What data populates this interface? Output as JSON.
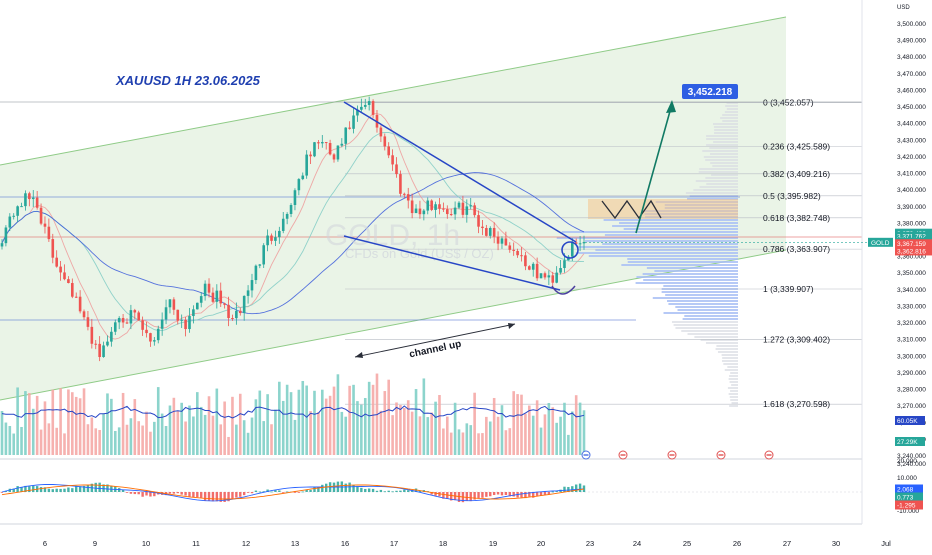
{
  "chart_title": "XAUUSD 1H 23.06.2025",
  "watermark": {
    "symbol": "GOLD, 1h",
    "description": "CFDs on Gold (US$ / OZ)"
  },
  "currency": "USD",
  "target_label": "3,452.218",
  "channel_label": "channel up",
  "fib_levels": [
    {
      "label": "0 (3,452.057)",
      "price": 3452.057
    },
    {
      "label": "0.236 (3,425.589)",
      "price": 3425.589
    },
    {
      "label": "0.382 (3,409.216)",
      "price": 3409.216
    },
    {
      "label": "0.5 (3,395.982)",
      "price": 3395.982
    },
    {
      "label": "0.618 (3,382.748)",
      "price": 3382.748
    },
    {
      "label": "0.786 (3,363.907)",
      "price": 3363.907
    },
    {
      "label": "1 (3,339.907)",
      "price": 3339.907
    },
    {
      "label": "1.272 (3,309.402)",
      "price": 3309.402
    },
    {
      "label": "1.618 (3,270.598)",
      "price": 3270.598
    }
  ],
  "price_axis": {
    "min": 3240,
    "max": 3500,
    "step": 10,
    "ticks": [
      "3,500.000",
      "3,490.000",
      "3,480.000",
      "3,470.000",
      "3,460.000",
      "3,450.000",
      "3,440.000",
      "3,430.000",
      "3,420.000",
      "3,410.000",
      "3,400.000",
      "3,390.000",
      "3,380.000",
      "3,370.000",
      "3,360.000",
      "3,350.000",
      "3,340.000",
      "3,330.000",
      "3,320.000",
      "3,310.000",
      "3,300.000",
      "3,290.000",
      "3,280.000",
      "3,270.000",
      "3,260.000",
      "3,250.000",
      "3,240.000"
    ]
  },
  "price_badges": [
    {
      "text": "3,373.492",
      "price": 3373.492,
      "color": "#26a69a"
    },
    {
      "text": "3,371.762",
      "price": 3371.762,
      "color": "#26a69a"
    },
    {
      "text": "3,368.005",
      "price": 3368.005,
      "color": "#26a69a"
    },
    {
      "text": "3,367.159",
      "price": 3367.159,
      "color": "#ef5350"
    },
    {
      "text": "3,362.816",
      "price": 3362.816,
      "color": "#ef5350"
    }
  ],
  "gold_tag": "GOLD",
  "volume_labels": {
    "top": "60.05K",
    "bottom": "27.29K"
  },
  "macd_axis": [
    "20.000",
    "10.000",
    "-10.000"
  ],
  "macd_badges": [
    "2.068",
    "0.773",
    "-1.295"
  ],
  "time_axis": [
    "6",
    "9",
    "10",
    "11",
    "12",
    "13",
    "16",
    "17",
    "18",
    "19",
    "20",
    "23",
    "24",
    "25",
    "26",
    "27",
    "30",
    "Jul"
  ],
  "chart_data": {
    "type": "candlestick",
    "title": "XAUUSD 1H 23.06.2025",
    "symbol": "GOLD",
    "timeframe": "1h",
    "ylim": [
      3240,
      3500
    ],
    "x_ticks": [
      "6",
      "9",
      "10",
      "11",
      "12",
      "13",
      "16",
      "17",
      "18",
      "19",
      "20",
      "23",
      "24",
      "25",
      "26",
      "27",
      "30",
      "Jul"
    ],
    "close_path": [
      {
        "d": "6",
        "v": 3372
      },
      {
        "d": "6",
        "v": 3392
      },
      {
        "d": "6",
        "v": 3395
      },
      {
        "d": "6",
        "v": 3360
      },
      {
        "d": "6",
        "v": 3345
      },
      {
        "d": "9",
        "v": 3318
      },
      {
        "d": "9",
        "v": 3300
      },
      {
        "d": "9",
        "v": 3325
      },
      {
        "d": "10",
        "v": 3322
      },
      {
        "d": "10",
        "v": 3306
      },
      {
        "d": "10",
        "v": 3334
      },
      {
        "d": "11",
        "v": 3318
      },
      {
        "d": "11",
        "v": 3340
      },
      {
        "d": "11",
        "v": 3334
      },
      {
        "d": "11",
        "v": 3320
      },
      {
        "d": "12",
        "v": 3345
      },
      {
        "d": "12",
        "v": 3370
      },
      {
        "d": "12",
        "v": 3382
      },
      {
        "d": "13",
        "v": 3410
      },
      {
        "d": "13",
        "v": 3430
      },
      {
        "d": "13",
        "v": 3418
      },
      {
        "d": "13",
        "v": 3440
      },
      {
        "d": "16",
        "v": 3452
      },
      {
        "d": "16",
        "v": 3428
      },
      {
        "d": "16",
        "v": 3400
      },
      {
        "d": "17",
        "v": 3385
      },
      {
        "d": "17",
        "v": 3392
      },
      {
        "d": "18",
        "v": 3386
      },
      {
        "d": "18",
        "v": 3390
      },
      {
        "d": "19",
        "v": 3376
      },
      {
        "d": "19",
        "v": 3370
      },
      {
        "d": "20",
        "v": 3362
      },
      {
        "d": "20",
        "v": 3350
      },
      {
        "d": "20",
        "v": 3345
      },
      {
        "d": "20",
        "v": 3362
      },
      {
        "d": "20",
        "v": 3368
      }
    ],
    "projection": [
      3385,
      3395,
      3385,
      3395,
      3385,
      3452.218
    ],
    "series": [
      {
        "name": "Volume",
        "type": "bar"
      },
      {
        "name": "MACD",
        "type": "histogram"
      }
    ]
  },
  "colors": {
    "channel_fill": "#e8f3e4",
    "channel_line": "#8fcb87",
    "wedge_line": "#2746c6",
    "up": "#26a69a",
    "down": "#ef5350",
    "target_badge": "#2e5ee3",
    "arrow": "#117a64",
    "volume_profile": "#a9bff5",
    "title": "#1f3fb0"
  }
}
